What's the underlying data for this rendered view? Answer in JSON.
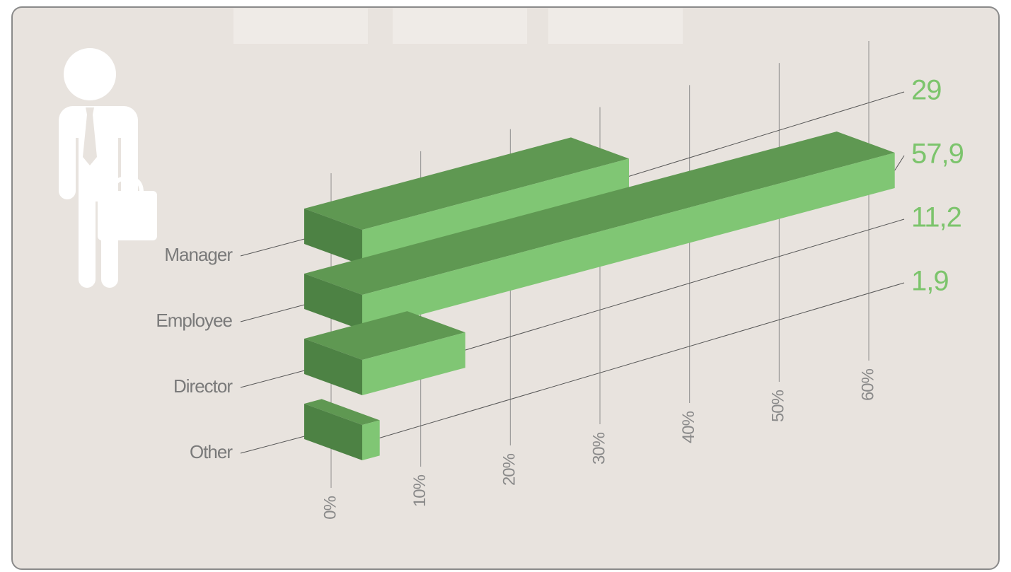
{
  "chart_data": {
    "type": "bar3d",
    "categories": [
      "Manager",
      "Employee",
      "Director",
      "Other"
    ],
    "values": [
      29,
      57.9,
      11.2,
      1.9
    ],
    "value_labels": [
      "29",
      "57,9",
      "11,2",
      "1,9"
    ],
    "color": "#80c674",
    "xlim": [
      0,
      60
    ],
    "xticks": [
      {
        "value": 0,
        "label": "0%"
      },
      {
        "value": 10,
        "label": "10%"
      },
      {
        "value": 20,
        "label": "20%"
      },
      {
        "value": 30,
        "label": "30%"
      },
      {
        "value": 40,
        "label": "40%"
      },
      {
        "value": 50,
        "label": "50%"
      },
      {
        "value": 60,
        "label": "60%"
      }
    ],
    "grid": true
  }
}
